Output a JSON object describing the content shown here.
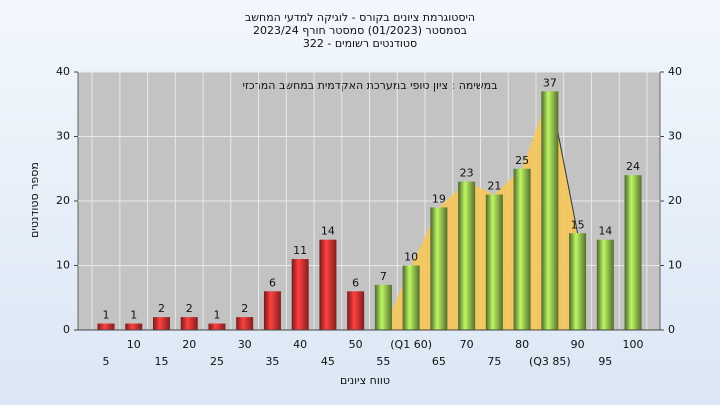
{
  "chart_data": {
    "type": "bar",
    "title": "היסטוגרמת ציונים בקורס - לוגיקה למדעי המחשב",
    "subtitle": "בסמסטר (01/2023) סמסטר חורף 2023/24",
    "subtitle2": "סטודנטים רשומים - 322",
    "annotation": "במשימה : ציון סופי במערכת האקדמית במחשב המרכזי",
    "y_label": "מספר סטודנטים",
    "x_label": "טווח ציונים",
    "categories": [
      "5",
      "10",
      "15",
      "20",
      "25",
      "30",
      "35",
      "40",
      "45",
      "50",
      "55",
      "(Q1 60)",
      "65",
      "70",
      "75",
      "80",
      "(Q3 85)",
      "90",
      "95",
      "100"
    ],
    "values": [
      1,
      1,
      2,
      2,
      1,
      2,
      6,
      11,
      14,
      6,
      7,
      10,
      19,
      23,
      21,
      25,
      37,
      15,
      14,
      24
    ],
    "colors": [
      "#d93030",
      "#d93030",
      "#d93030",
      "#d93030",
      "#d93030",
      "#d93030",
      "#d93030",
      "#d93030",
      "#d93030",
      "#d93030",
      "#8cb84a",
      "#8cb84a",
      "#8cb84a",
      "#8cb84a",
      "#8cb84a",
      "#8cb84a",
      "#8cb84a",
      "#8cb84a",
      "#8cb84a",
      "#8cb84a"
    ],
    "band_color": "#f6c85a",
    "ylim": [
      0,
      40
    ],
    "yticks": [
      0,
      10,
      20,
      30,
      40
    ],
    "y2lim": [
      0,
      40
    ],
    "y2ticks": [
      0,
      10,
      20,
      30,
      40
    ],
    "grid": true
  }
}
